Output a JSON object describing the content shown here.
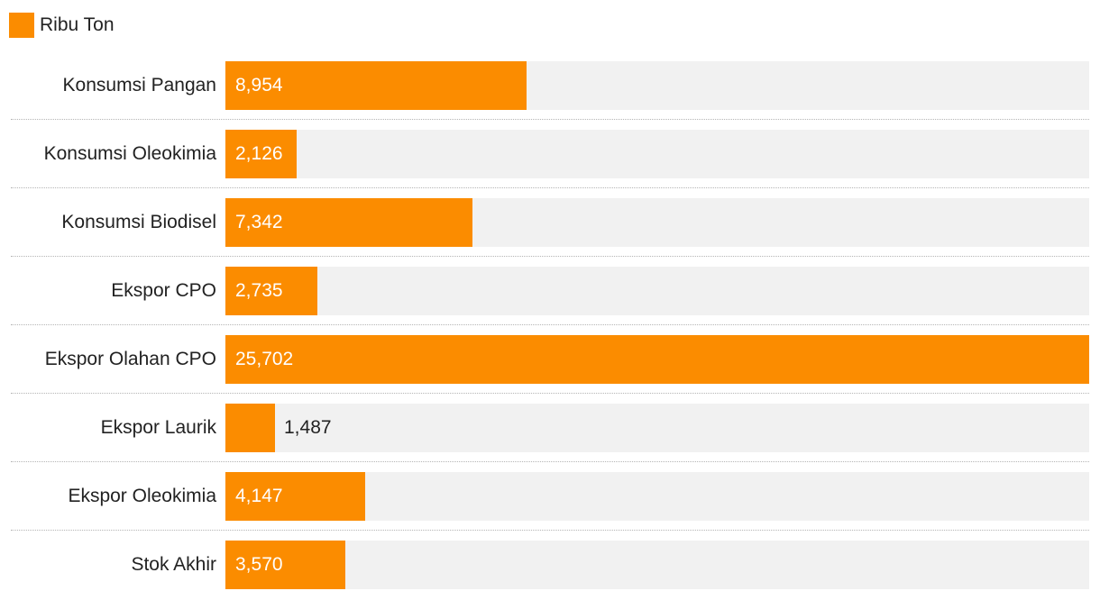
{
  "colors": {
    "bar": "#FB8C00",
    "track": "#F1F1F1",
    "label_inside": "#ffffff",
    "label_outside": "#222222"
  },
  "legend": {
    "label": "Ribu Ton"
  },
  "chart_data": {
    "type": "bar",
    "orientation": "horizontal",
    "title": "",
    "xlabel": "",
    "ylabel": "",
    "xlim": [
      0,
      25702
    ],
    "series": [
      {
        "name": "Ribu Ton",
        "values": [
          8954,
          2126,
          7342,
          2735,
          25702,
          1487,
          4147,
          3570
        ]
      }
    ],
    "categories": [
      "Konsumsi Pangan",
      "Konsumsi Oleokimia",
      "Konsumsi Biodisel",
      "Ekspor CPO",
      "Ekspor Olahan CPO",
      "Ekspor Laurik",
      "Ekspor Oleokimia",
      "Stok Akhir"
    ],
    "value_labels": [
      "8,954",
      "2,126",
      "7,342",
      "2,735",
      "25,702",
      "1,487",
      "4,147",
      "3,570"
    ],
    "legend_position": "top-left",
    "grid": false
  }
}
